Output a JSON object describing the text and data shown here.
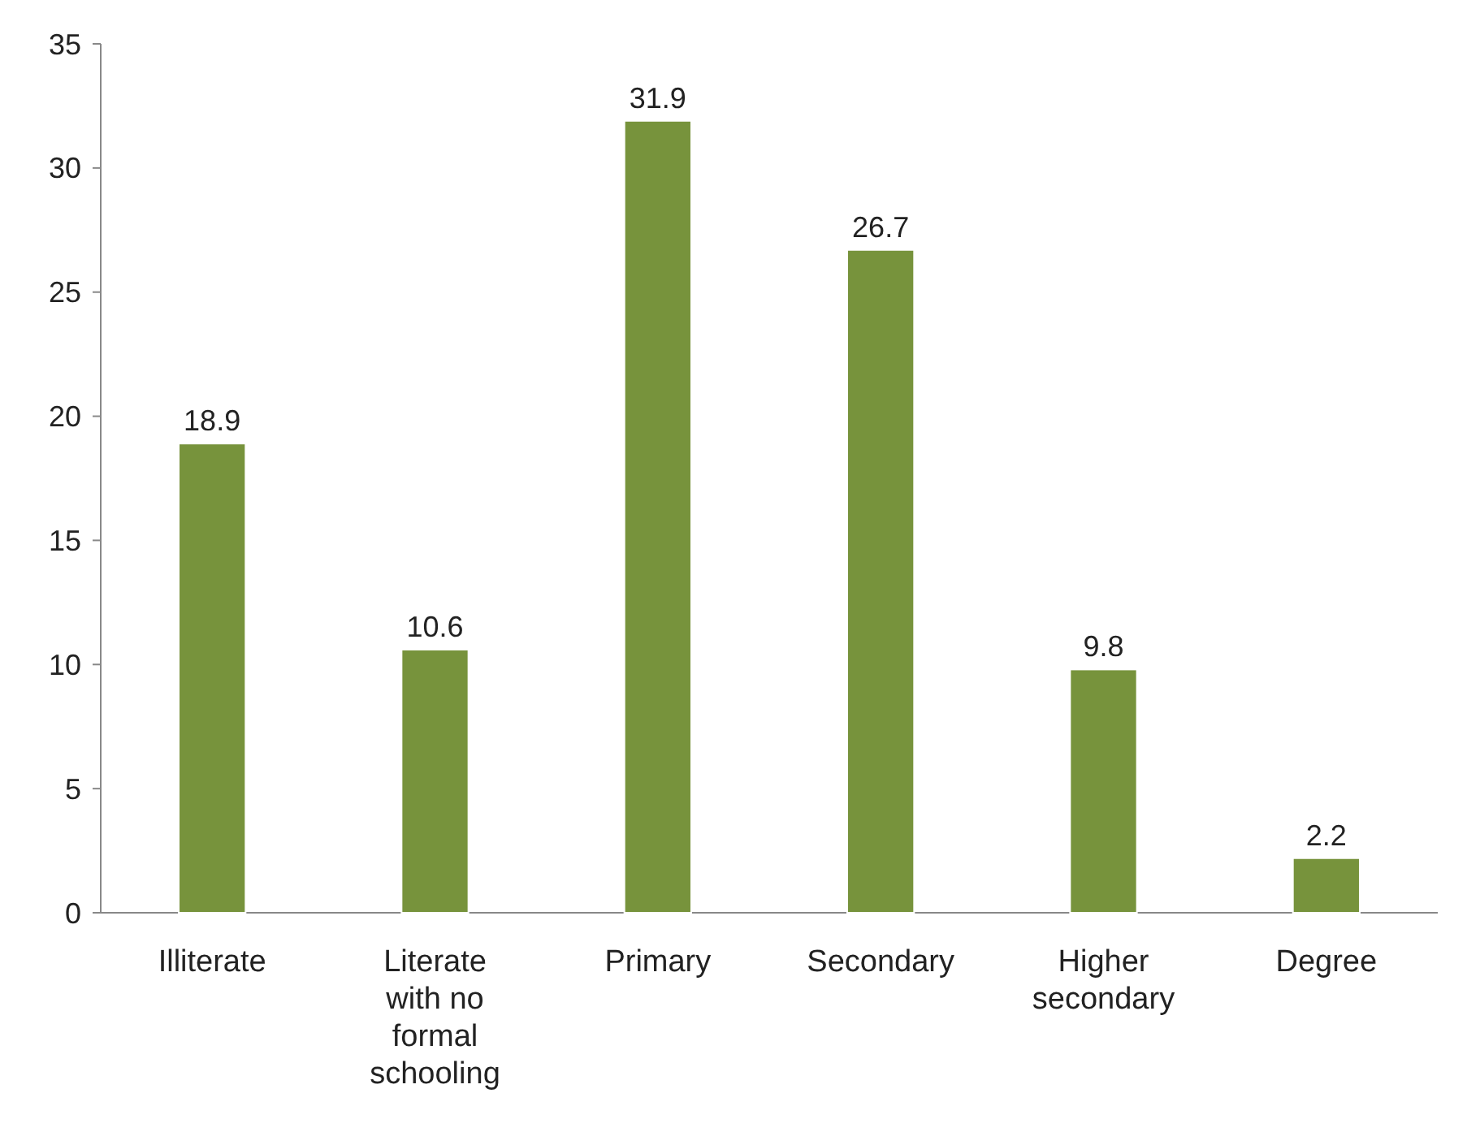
{
  "chart_data": {
    "type": "bar",
    "categories": [
      "Illiterate",
      "Literate with no formal schooling",
      "Primary",
      "Secondary",
      "Higher secondary",
      "Degree"
    ],
    "values": [
      18.9,
      10.6,
      31.9,
      26.7,
      9.8,
      2.2
    ],
    "color": "#77933c",
    "ylim": [
      0,
      35
    ],
    "yticks": [
      0,
      5,
      10,
      15,
      20,
      25,
      30,
      35
    ],
    "data_labels": true,
    "grid": false
  }
}
